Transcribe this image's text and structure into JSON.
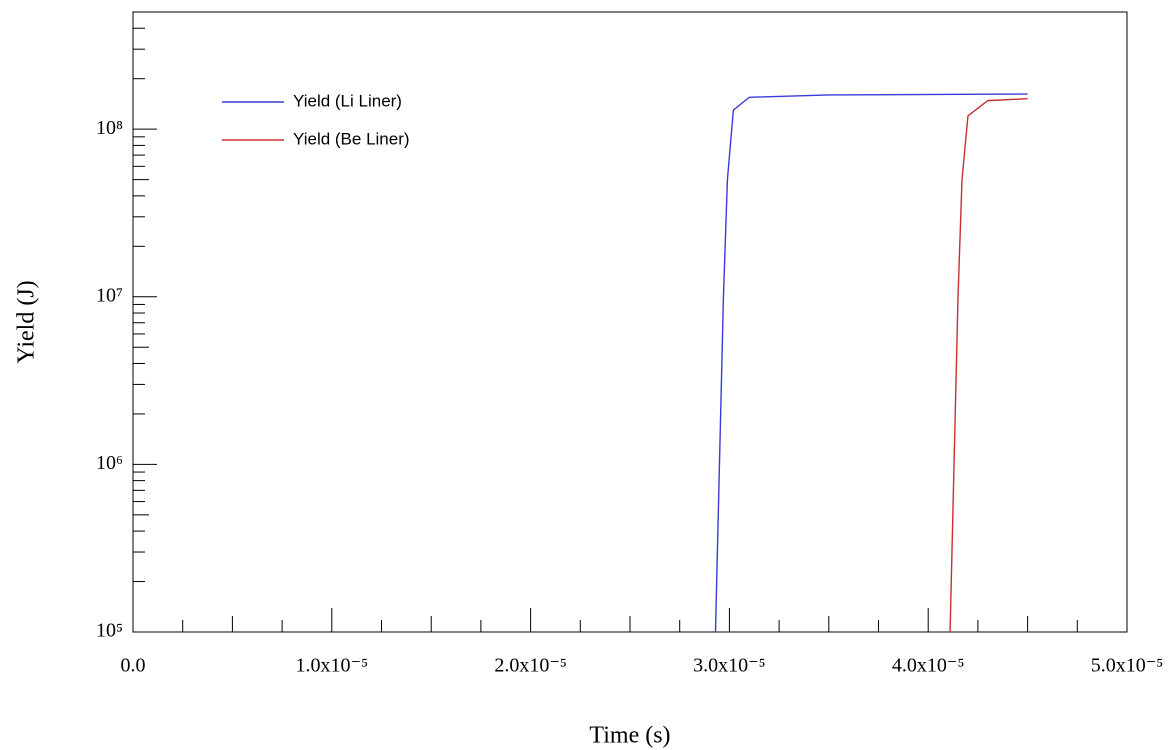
{
  "chart_data": {
    "type": "line",
    "x_label": "Time (s)",
    "y_label": "Yield (J)",
    "log_y": true,
    "legend": "upper left",
    "xlim": [
      0,
      5e-05
    ],
    "xticks": [
      {
        "value": 0,
        "label": "0.0"
      },
      {
        "value": 1e-05,
        "label": "1.0x10⁻⁵"
      },
      {
        "value": 2e-05,
        "label": "2.0x10⁻⁵"
      },
      {
        "value": 3e-05,
        "label": "3.0x10⁻⁵"
      },
      {
        "value": 4e-05,
        "label": "4.0x10⁻⁵"
      },
      {
        "value": 5e-05,
        "label": "5.0x10⁻⁵"
      }
    ],
    "ylim": [
      100000,
      500000000
    ],
    "yticks": [
      {
        "value": 100000,
        "label": "10⁵"
      },
      {
        "value": 1000000,
        "label": "10⁶"
      },
      {
        "value": 10000000,
        "label": "10⁷"
      },
      {
        "value": 100000000,
        "label": "10⁸"
      }
    ],
    "series": [
      {
        "name": "Yield (Li Liner)",
        "color": "#3a3ad8",
        "x": [
          2.93e-05,
          2.95e-05,
          2.97e-05,
          2.99e-05,
          3.02e-05,
          3.1e-05,
          3.5e-05,
          4.5e-05
        ],
        "values": [
          100000,
          1000000,
          10000000,
          50000000,
          130000000,
          155000000,
          160000000,
          162000000
        ]
      },
      {
        "name": "Yield (Be Liner)",
        "color": "#c83030",
        "x": [
          4.11e-05,
          4.13e-05,
          4.15e-05,
          4.17e-05,
          4.2e-05,
          4.3e-05,
          4.5e-05
        ],
        "values": [
          100000,
          1000000,
          10000000,
          50000000,
          120000000,
          148000000,
          152000000
        ]
      }
    ]
  }
}
